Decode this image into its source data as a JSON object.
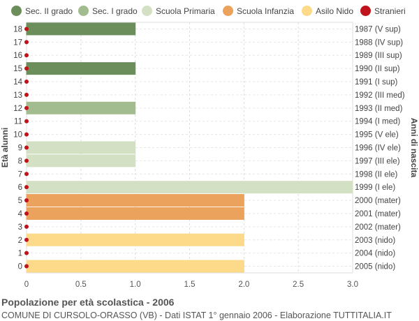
{
  "chart_data": {
    "type": "bar",
    "orientation": "horizontal",
    "title": "Popolazione per età scolastica - 2006",
    "subtitle": "COMUNE DI CURSOLO-ORASSO (VB) - Dati ISTAT 1° gennaio 2006 - Elaborazione TUTTITALIA.IT",
    "ylabel_left": "Età alunni",
    "ylabel_right": "Anni di nascita",
    "xlim": [
      0,
      3
    ],
    "xticks": [
      "0",
      "0.5",
      "1.0",
      "1.5",
      "2.0",
      "2.5",
      "3.0"
    ],
    "grid": true,
    "legend_position": "top",
    "legend": [
      {
        "name": "Sec. II grado",
        "color": "#6b8e5a"
      },
      {
        "name": "Sec. I grado",
        "color": "#a3bc8f"
      },
      {
        "name": "Scuola Primaria",
        "color": "#d4e0c4"
      },
      {
        "name": "Scuola Infanzia",
        "color": "#eba25c"
      },
      {
        "name": "Asilo Nido",
        "color": "#fdd98a"
      },
      {
        "name": "Stranieri",
        "color": "#c0141c"
      }
    ],
    "rows": [
      {
        "age": "18",
        "year": "1987 (V sup)",
        "value": 1,
        "group": 0
      },
      {
        "age": "17",
        "year": "1988 (IV sup)",
        "value": 0,
        "group": 0
      },
      {
        "age": "16",
        "year": "1989 (III sup)",
        "value": 0,
        "group": 0
      },
      {
        "age": "15",
        "year": "1990 (II sup)",
        "value": 1,
        "group": 0
      },
      {
        "age": "14",
        "year": "1991 (I sup)",
        "value": 0,
        "group": 0
      },
      {
        "age": "13",
        "year": "1992 (III med)",
        "value": 0,
        "group": 1
      },
      {
        "age": "12",
        "year": "1993 (II med)",
        "value": 1,
        "group": 1
      },
      {
        "age": "11",
        "year": "1994 (I med)",
        "value": 0,
        "group": 1
      },
      {
        "age": "10",
        "year": "1995 (V ele)",
        "value": 0,
        "group": 2
      },
      {
        "age": "9",
        "year": "1996 (IV ele)",
        "value": 1,
        "group": 2
      },
      {
        "age": "8",
        "year": "1997 (III ele)",
        "value": 1,
        "group": 2
      },
      {
        "age": "7",
        "year": "1998 (II ele)",
        "value": 0,
        "group": 2
      },
      {
        "age": "6",
        "year": "1999 (I ele)",
        "value": 3,
        "group": 2
      },
      {
        "age": "5",
        "year": "2000 (mater)",
        "value": 2,
        "group": 3
      },
      {
        "age": "4",
        "year": "2001 (mater)",
        "value": 2,
        "group": 3
      },
      {
        "age": "3",
        "year": "2002 (mater)",
        "value": 0,
        "group": 3
      },
      {
        "age": "2",
        "year": "2003 (nido)",
        "value": 2,
        "group": 4
      },
      {
        "age": "1",
        "year": "2004 (nido)",
        "value": 0,
        "group": 4
      },
      {
        "age": "0",
        "year": "2005 (nido)",
        "value": 2,
        "group": 4
      }
    ],
    "stranieri": [
      0,
      0,
      0,
      0,
      0,
      0,
      0,
      0,
      0,
      0,
      0,
      0,
      0,
      0,
      0,
      0,
      0,
      0,
      0
    ]
  }
}
